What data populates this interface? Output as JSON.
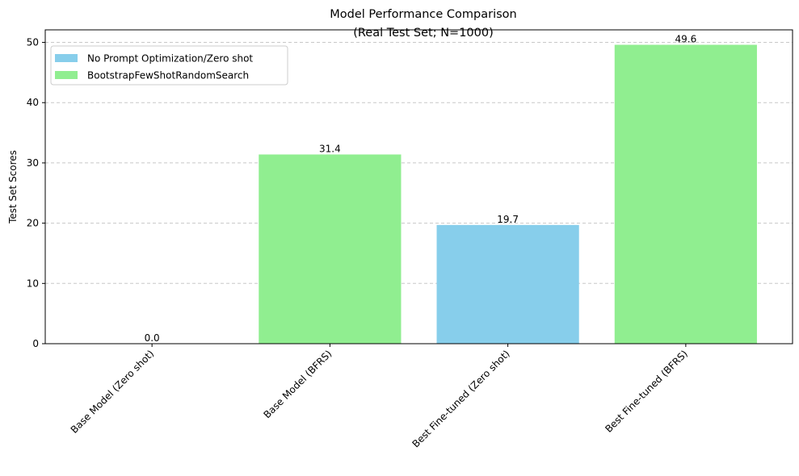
{
  "chart_data": {
    "type": "bar",
    "title": "Model Performance Comparison",
    "subtitle": "(Real Test Set; N=1000)",
    "xlabel": "",
    "ylabel": "Test Set Scores",
    "ylim": [
      0,
      52.08
    ],
    "yticks": [
      0,
      10,
      20,
      30,
      40,
      50
    ],
    "grid": "y-dashed",
    "legend_position": "upper-left",
    "categories": [
      "Base Model (Zero shot)",
      "Base Model (BFRS)",
      "Best Fine-tuned (Zero shot)",
      "Best Fine-tuned (BFRS)"
    ],
    "values": [
      0.0,
      31.4,
      19.7,
      49.6
    ],
    "data_labels": [
      "0.0",
      "31.4",
      "19.7",
      "49.6"
    ],
    "bar_series": [
      "No Prompt Optimization/Zero shot",
      "BootstrapFewShotRandomSearch",
      "No Prompt Optimization/Zero shot",
      "BootstrapFewShotRandomSearch"
    ],
    "series": [
      {
        "name": "No Prompt Optimization/Zero shot",
        "color": "#87CEEB"
      },
      {
        "name": "BootstrapFewShotRandomSearch",
        "color": "#90EE90"
      }
    ]
  }
}
